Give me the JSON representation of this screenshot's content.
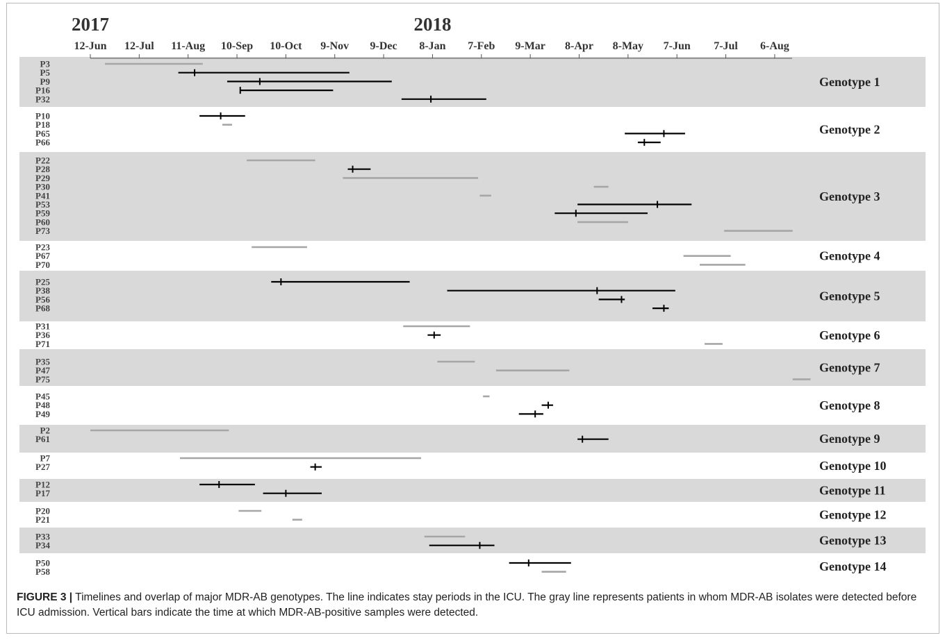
{
  "chart_data": {
    "type": "timeline",
    "years": [
      {
        "label": "2017",
        "date": "2017-06-12"
      },
      {
        "label": "2018",
        "date": "2018-01-08"
      }
    ],
    "x_ticks": [
      {
        "label": "12-Jun",
        "date": "2017-06-12"
      },
      {
        "label": "12-Jul",
        "date": "2017-07-12"
      },
      {
        "label": "11-Aug",
        "date": "2017-08-11"
      },
      {
        "label": "10-Sep",
        "date": "2017-09-10"
      },
      {
        "label": "10-Oct",
        "date": "2017-10-10"
      },
      {
        "label": "9-Nov",
        "date": "2017-11-09"
      },
      {
        "label": "9-Dec",
        "date": "2017-12-09"
      },
      {
        "label": "8-Jan",
        "date": "2018-01-08"
      },
      {
        "label": "7-Feb",
        "date": "2018-02-07"
      },
      {
        "label": "9-Mar",
        "date": "2018-03-09"
      },
      {
        "label": "8-Apr",
        "date": "2018-04-08"
      },
      {
        "label": "8-May",
        "date": "2018-05-08"
      },
      {
        "label": "7-Jun",
        "date": "2018-06-07"
      },
      {
        "label": "7-Jul",
        "date": "2018-07-07"
      },
      {
        "label": "6-Aug",
        "date": "2018-08-06"
      }
    ],
    "xlim": [
      "2017-06-12",
      "2018-08-28"
    ],
    "legend_colors": {
      "icu_stay": "#000000",
      "pre_icu": "#a6a6a6",
      "band": "#d9d9d9"
    },
    "genotypes": [
      {
        "name": "Genotype 1",
        "shaded": true,
        "patients": [
          {
            "id": "P3",
            "start": "2017-06-21",
            "end": "2017-08-20",
            "color": "gray"
          },
          {
            "id": "P5",
            "start": "2017-08-05",
            "end": "2017-11-18",
            "color": "black",
            "marks": [
              "2017-08-15"
            ]
          },
          {
            "id": "P9",
            "start": "2017-09-04",
            "end": "2017-12-14",
            "color": "black",
            "marks": [
              "2017-09-24"
            ]
          },
          {
            "id": "P16",
            "start": "2017-09-12",
            "end": "2017-11-08",
            "color": "black",
            "marks": [
              "2017-09-12"
            ]
          },
          {
            "id": "P32",
            "start": "2017-12-20",
            "end": "2018-02-10",
            "color": "black",
            "marks": [
              "2018-01-07"
            ]
          }
        ]
      },
      {
        "name": "Genotype 2",
        "shaded": false,
        "patients": [
          {
            "id": "P10",
            "start": "2017-08-18",
            "end": "2017-09-15",
            "color": "black",
            "marks": [
              "2017-08-31"
            ]
          },
          {
            "id": "P18",
            "start": "2017-09-01",
            "end": "2017-09-07",
            "color": "gray"
          },
          {
            "id": "P65",
            "start": "2018-05-06",
            "end": "2018-06-12",
            "color": "black",
            "marks": [
              "2018-05-30"
            ]
          },
          {
            "id": "P66",
            "start": "2018-05-14",
            "end": "2018-05-28",
            "color": "black",
            "marks": [
              "2018-05-18"
            ]
          }
        ]
      },
      {
        "name": "Genotype 3",
        "shaded": true,
        "patients": [
          {
            "id": "P22",
            "start": "2017-09-16",
            "end": "2017-10-28",
            "color": "gray"
          },
          {
            "id": "P28",
            "start": "2017-11-17",
            "end": "2017-12-01",
            "color": "black",
            "marks": [
              "2017-11-20"
            ]
          },
          {
            "id": "P29",
            "start": "2017-11-14",
            "end": "2018-02-05",
            "color": "gray"
          },
          {
            "id": "P30",
            "start": "2018-04-17",
            "end": "2018-04-26",
            "color": "gray"
          },
          {
            "id": "P41",
            "start": "2018-02-06",
            "end": "2018-02-13",
            "color": "gray"
          },
          {
            "id": "P53",
            "start": "2018-04-07",
            "end": "2018-06-16",
            "color": "black",
            "marks": [
              "2018-05-26"
            ]
          },
          {
            "id": "P59",
            "start": "2018-03-24",
            "end": "2018-05-20",
            "color": "black",
            "marks": [
              "2018-04-06"
            ]
          },
          {
            "id": "P60",
            "start": "2018-04-07",
            "end": "2018-05-08",
            "color": "gray"
          },
          {
            "id": "P73",
            "start": "2018-07-06",
            "end": "2018-08-17",
            "color": "gray"
          }
        ]
      },
      {
        "name": "Genotype 4",
        "shaded": false,
        "patients": [
          {
            "id": "P23",
            "start": "2017-09-19",
            "end": "2017-10-23",
            "color": "gray"
          },
          {
            "id": "P67",
            "start": "2018-06-11",
            "end": "2018-07-10",
            "color": "gray"
          },
          {
            "id": "P70",
            "start": "2018-06-21",
            "end": "2018-07-19",
            "color": "gray"
          }
        ]
      },
      {
        "name": "Genotype 5",
        "shaded": true,
        "patients": [
          {
            "id": "P25",
            "start": "2017-10-01",
            "end": "2017-12-25",
            "color": "black",
            "marks": [
              "2017-10-07"
            ]
          },
          {
            "id": "P38",
            "start": "2018-01-17",
            "end": "2018-06-06",
            "color": "black",
            "marks": [
              "2018-04-19"
            ]
          },
          {
            "id": "P56",
            "start": "2018-04-20",
            "end": "2018-05-06",
            "color": "black",
            "marks": [
              "2018-05-04"
            ]
          },
          {
            "id": "P68",
            "start": "2018-05-23",
            "end": "2018-06-02",
            "color": "black",
            "marks": [
              "2018-05-30"
            ]
          }
        ]
      },
      {
        "name": "Genotype 6",
        "shaded": false,
        "patients": [
          {
            "id": "P31",
            "start": "2017-12-21",
            "end": "2018-01-31",
            "color": "gray"
          },
          {
            "id": "P36",
            "start": "2018-01-05",
            "end": "2018-01-13",
            "color": "black",
            "marks": [
              "2018-01-09"
            ]
          },
          {
            "id": "P71",
            "start": "2018-06-24",
            "end": "2018-07-05",
            "color": "gray"
          }
        ]
      },
      {
        "name": "Genotype 7",
        "shaded": true,
        "patients": [
          {
            "id": "P35",
            "start": "2018-01-11",
            "end": "2018-02-03",
            "color": "gray"
          },
          {
            "id": "P47",
            "start": "2018-02-16",
            "end": "2018-04-02",
            "color": "gray"
          },
          {
            "id": "P75",
            "start": "2018-08-17",
            "end": "2018-08-28",
            "color": "gray"
          }
        ]
      },
      {
        "name": "Genotype 8",
        "shaded": false,
        "patients": [
          {
            "id": "P45",
            "start": "2018-02-08",
            "end": "2018-02-12",
            "color": "gray"
          },
          {
            "id": "P48",
            "start": "2018-03-16",
            "end": "2018-03-23",
            "color": "black",
            "marks": [
              "2018-03-20"
            ]
          },
          {
            "id": "P49",
            "start": "2018-03-02",
            "end": "2018-03-17",
            "color": "black",
            "marks": [
              "2018-03-12"
            ]
          }
        ]
      },
      {
        "name": "Genotype 9",
        "shaded": true,
        "patients": [
          {
            "id": "P2",
            "start": "2017-06-12",
            "end": "2017-09-05",
            "color": "gray"
          },
          {
            "id": "P61",
            "start": "2018-04-07",
            "end": "2018-04-26",
            "color": "black",
            "marks": [
              "2018-04-10"
            ]
          }
        ]
      },
      {
        "name": "Genotype 10",
        "shaded": false,
        "patients": [
          {
            "id": "P7",
            "start": "2017-08-06",
            "end": "2018-01-01",
            "color": "gray"
          },
          {
            "id": "P27",
            "start": "2017-10-25",
            "end": "2017-11-01",
            "color": "black",
            "marks": [
              "2017-10-28"
            ]
          }
        ]
      },
      {
        "name": "Genotype 11",
        "shaded": true,
        "patients": [
          {
            "id": "P12",
            "start": "2017-08-18",
            "end": "2017-09-21",
            "color": "black",
            "marks": [
              "2017-08-30"
            ]
          },
          {
            "id": "P17",
            "start": "2017-09-26",
            "end": "2017-11-01",
            "color": "black",
            "marks": [
              "2017-10-10"
            ]
          }
        ]
      },
      {
        "name": "Genotype 12",
        "shaded": false,
        "patients": [
          {
            "id": "P20",
            "start": "2017-09-11",
            "end": "2017-09-25",
            "color": "gray"
          },
          {
            "id": "P21",
            "start": "2017-10-14",
            "end": "2017-10-20",
            "color": "gray"
          }
        ]
      },
      {
        "name": "Genotype 13",
        "shaded": true,
        "patients": [
          {
            "id": "P33",
            "start": "2018-01-03",
            "end": "2018-01-28",
            "color": "gray"
          },
          {
            "id": "P34",
            "start": "2018-01-06",
            "end": "2018-02-15",
            "color": "black",
            "marks": [
              "2018-02-06"
            ]
          }
        ]
      },
      {
        "name": "Genotype 14",
        "shaded": false,
        "patients": [
          {
            "id": "P50",
            "start": "2018-02-24",
            "end": "2018-04-03",
            "color": "black",
            "marks": [
              "2018-03-08"
            ]
          },
          {
            "id": "P58",
            "start": "2018-03-16",
            "end": "2018-03-31",
            "color": "gray"
          }
        ]
      }
    ]
  },
  "caption": {
    "label": "FIGURE 3 |",
    "text": "Timelines and overlap of major MDR-AB genotypes. The line indicates stay periods in the ICU. The gray line represents patients in whom MDR-AB isolates were detected before ICU admission. Vertical bars indicate the time at which MDR-AB-positive samples were detected."
  }
}
